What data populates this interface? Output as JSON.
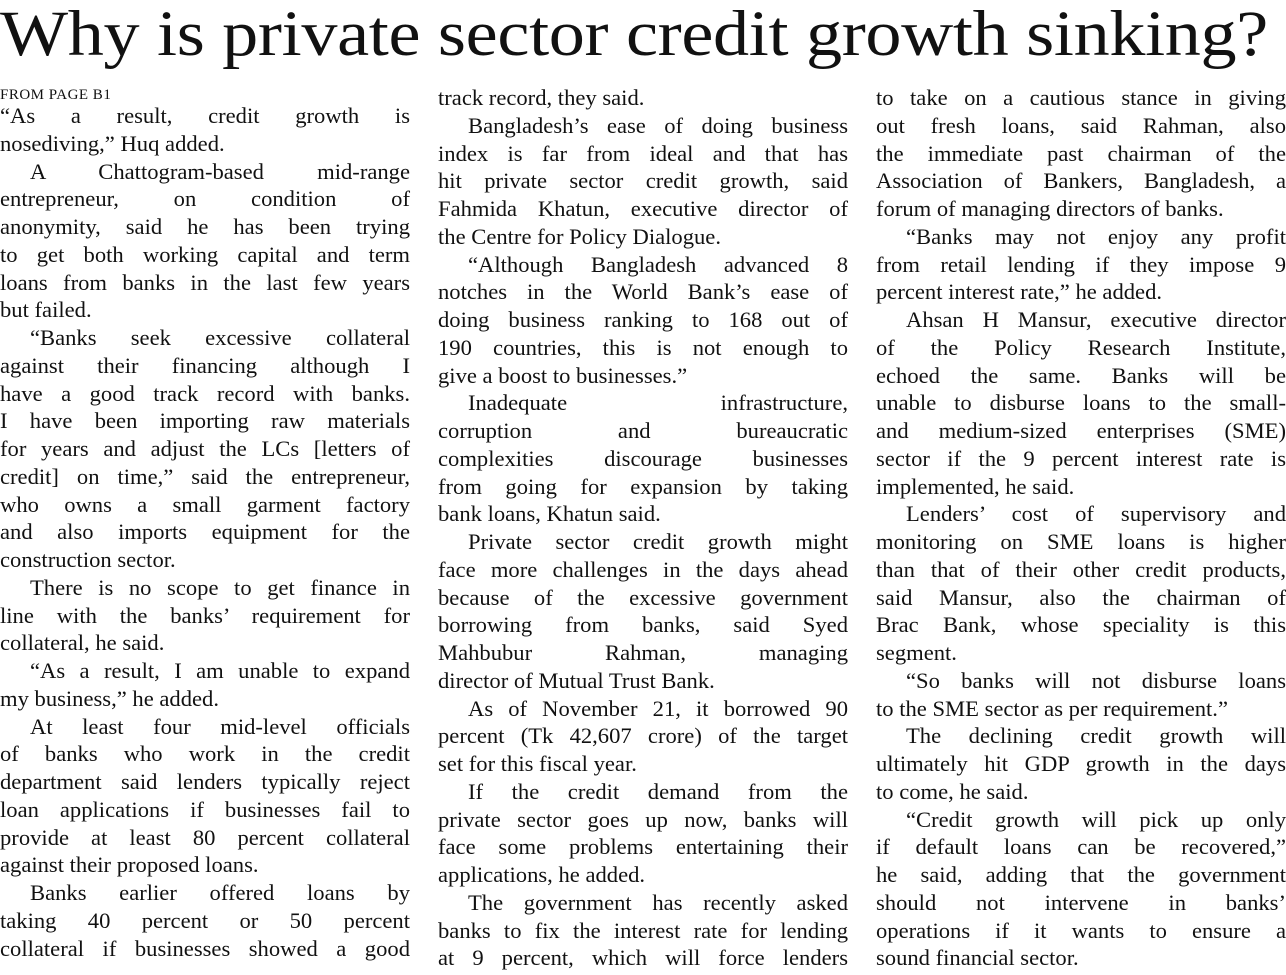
{
  "headline": "Why is private sector credit growth sinking?",
  "jump_line": "FROM PAGE B1",
  "columns": [
    [
      {
        "indent": false,
        "end": true,
        "lines": [
          "“As a result, credit growth is",
          "nosediving,” Huq added."
        ]
      },
      {
        "indent": true,
        "end": true,
        "lines": [
          "A Chattogram-based mid-range",
          "entrepreneur, on condition of",
          "anonymity, said he has been trying",
          "to get both working capital and term",
          "loans from banks in the last few years",
          "but failed."
        ]
      },
      {
        "indent": true,
        "end": true,
        "lines": [
          "“Banks seek excessive collateral",
          "against their financing although I",
          "have a good track record with banks.",
          "I have been importing raw materials",
          "for years and adjust the LCs [letters of",
          "credit] on time,” said the entrepreneur,",
          "who owns a small garment factory",
          "and also imports equipment for the",
          "construction sector."
        ]
      },
      {
        "indent": true,
        "end": true,
        "lines": [
          "There is no scope to get finance in",
          "line with the banks’ requirement for",
          "collateral, he said."
        ]
      },
      {
        "indent": true,
        "end": true,
        "lines": [
          "“As a result, I am unable to expand",
          "my business,” he added."
        ]
      },
      {
        "indent": true,
        "end": true,
        "lines": [
          "At least four mid-level officials",
          "of banks who work in the credit",
          "department said lenders typically reject",
          "loan applications if businesses fail to",
          "provide at least 80 percent collateral",
          "against their proposed loans."
        ]
      },
      {
        "indent": true,
        "end": false,
        "lines": [
          "Banks earlier offered loans by",
          "taking 40 percent or 50 percent",
          "collateral if businesses showed a good"
        ]
      }
    ],
    [
      {
        "indent": false,
        "end": true,
        "lines": [
          "track record, they said."
        ]
      },
      {
        "indent": true,
        "end": true,
        "lines": [
          "Bangladesh’s ease of doing business",
          "index is far from ideal and that has",
          "hit private sector credit growth, said",
          "Fahmida Khatun, executive director of",
          "the Centre for Policy Dialogue."
        ]
      },
      {
        "indent": true,
        "end": true,
        "lines": [
          "“Although Bangladesh advanced 8",
          "notches in the World Bank’s ease of",
          "doing business ranking to 168 out of",
          "190 countries, this is not enough to",
          "give a boost to businesses.”"
        ]
      },
      {
        "indent": true,
        "end": true,
        "lines": [
          "Inadequate infrastructure,",
          "corruption and bureaucratic",
          "complexities discourage businesses",
          "from going for expansion by taking",
          "bank loans, Khatun said."
        ]
      },
      {
        "indent": true,
        "end": true,
        "lines": [
          "Private sector credit growth might",
          "face more challenges in the days ahead",
          "because of the excessive government",
          "borrowing from banks, said Syed",
          "Mahbubur Rahman, managing",
          "director of Mutual Trust Bank."
        ]
      },
      {
        "indent": true,
        "end": true,
        "lines": [
          "As of November 21, it borrowed 90",
          "percent (Tk 42,607 crore) of the target",
          "set for this fiscal year."
        ]
      },
      {
        "indent": true,
        "end": true,
        "lines": [
          "If the credit demand from the",
          "private sector goes up now, banks will",
          "face some problems entertaining their",
          "applications, he added."
        ]
      },
      {
        "indent": true,
        "end": false,
        "lines": [
          "The government has recently asked",
          "banks to fix the interest rate for lending",
          "at 9 percent, which will force lenders"
        ]
      }
    ],
    [
      {
        "indent": false,
        "end": true,
        "lines": [
          "to take on a cautious stance in giving",
          "out fresh loans, said Rahman, also",
          "the immediate past chairman of the",
          "Association of Bankers, Bangladesh, a",
          "forum of managing directors of banks."
        ]
      },
      {
        "indent": true,
        "end": true,
        "lines": [
          "“Banks may not enjoy any profit",
          "from retail lending if they impose 9",
          "percent interest rate,” he added."
        ]
      },
      {
        "indent": true,
        "end": true,
        "lines": [
          "Ahsan H Mansur, executive director",
          "of the Policy Research Institute,",
          "echoed the same. Banks will be",
          "unable to disburse loans to the small-",
          "and medium-sized enterprises (SME)",
          "sector if the 9 percent interest rate is",
          "implemented, he said."
        ]
      },
      {
        "indent": true,
        "end": true,
        "lines": [
          "Lenders’ cost of supervisory and",
          "monitoring on SME loans is higher",
          "than that of their other credit products,",
          "said Mansur, also the chairman of",
          "Brac Bank, whose speciality is this",
          "segment."
        ]
      },
      {
        "indent": true,
        "end": true,
        "lines": [
          "“So banks will not disburse loans",
          "to the SME sector as per requirement.”"
        ]
      },
      {
        "indent": true,
        "end": true,
        "lines": [
          "The declining credit growth will",
          "ultimately hit GDP growth in the days",
          "to come, he said."
        ]
      },
      {
        "indent": true,
        "end": true,
        "lines": [
          "“Credit growth will pick up only",
          "if default loans can be recovered,”",
          "he said, adding that the government",
          "should not intervene in banks’",
          "operations if it wants to ensure a",
          "sound financial sector."
        ]
      }
    ]
  ]
}
